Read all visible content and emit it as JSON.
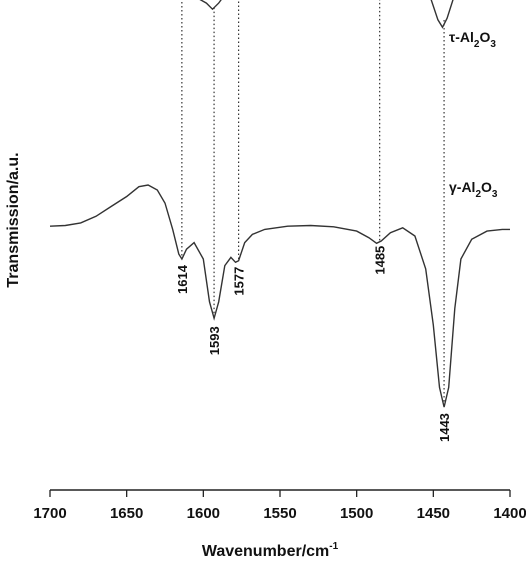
{
  "chart_data": {
    "type": "line",
    "xlabel_main": "Wavenumber/cm",
    "xlabel_sup": "-1",
    "ylabel": "Transmission/a.u.",
    "xlim": [
      1700,
      1400
    ],
    "x_ticks": [
      1700,
      1650,
      1600,
      1550,
      1500,
      1450,
      1400
    ],
    "y_ticks_shown": false,
    "series": [
      {
        "name_main": "τ-Al",
        "name_sub1": "2",
        "name_mid": "O",
        "name_sub2": "3",
        "color": "#333333",
        "points": [
          [
            1700,
            0.97
          ],
          [
            1690,
            0.975
          ],
          [
            1680,
            0.97
          ],
          [
            1670,
            0.985
          ],
          [
            1660,
            0.99
          ],
          [
            1650,
            0.992
          ],
          [
            1640,
            0.99
          ],
          [
            1635,
            0.995
          ],
          [
            1625,
            0.98
          ],
          [
            1618,
            0.96
          ],
          [
            1612,
            0.94
          ],
          [
            1605,
            0.9
          ],
          [
            1598,
            0.86
          ],
          [
            1594,
            0.82
          ],
          [
            1590,
            0.86
          ],
          [
            1585,
            0.93
          ],
          [
            1580,
            0.955
          ],
          [
            1577,
            0.95
          ],
          [
            1572,
            0.97
          ],
          [
            1565,
            0.98
          ],
          [
            1550,
            0.985
          ],
          [
            1530,
            0.985
          ],
          [
            1510,
            0.984
          ],
          [
            1495,
            0.98
          ],
          [
            1487,
            0.96
          ],
          [
            1483,
            0.975
          ],
          [
            1475,
            0.99
          ],
          [
            1468,
            0.985
          ],
          [
            1460,
            0.97
          ],
          [
            1452,
            0.9
          ],
          [
            1447,
            0.75
          ],
          [
            1444,
            0.7
          ],
          [
            1441,
            0.76
          ],
          [
            1436,
            0.92
          ],
          [
            1430,
            0.96
          ],
          [
            1420,
            0.97
          ],
          [
            1410,
            0.975
          ],
          [
            1400,
            0.975
          ]
        ]
      },
      {
        "name_main": "γ-Al",
        "name_sub1": "2",
        "name_mid": "O",
        "name_sub2": "3",
        "color": "#333333",
        "points": [
          [
            1700,
            0.65
          ],
          [
            1690,
            0.652
          ],
          [
            1680,
            0.66
          ],
          [
            1670,
            0.68
          ],
          [
            1660,
            0.71
          ],
          [
            1650,
            0.74
          ],
          [
            1642,
            0.77
          ],
          [
            1636,
            0.775
          ],
          [
            1630,
            0.76
          ],
          [
            1625,
            0.72
          ],
          [
            1620,
            0.64
          ],
          [
            1616,
            0.565
          ],
          [
            1614,
            0.55
          ],
          [
            1611,
            0.58
          ],
          [
            1606,
            0.6
          ],
          [
            1600,
            0.55
          ],
          [
            1596,
            0.42
          ],
          [
            1593,
            0.37
          ],
          [
            1590,
            0.42
          ],
          [
            1586,
            0.53
          ],
          [
            1582,
            0.555
          ],
          [
            1579,
            0.54
          ],
          [
            1577,
            0.545
          ],
          [
            1573,
            0.6
          ],
          [
            1568,
            0.625
          ],
          [
            1560,
            0.64
          ],
          [
            1545,
            0.65
          ],
          [
            1530,
            0.652
          ],
          [
            1515,
            0.648
          ],
          [
            1500,
            0.635
          ],
          [
            1492,
            0.615
          ],
          [
            1487,
            0.598
          ],
          [
            1484,
            0.605
          ],
          [
            1478,
            0.63
          ],
          [
            1470,
            0.645
          ],
          [
            1462,
            0.62
          ],
          [
            1455,
            0.52
          ],
          [
            1450,
            0.35
          ],
          [
            1446,
            0.16
          ],
          [
            1443,
            0.1
          ],
          [
            1440,
            0.16
          ],
          [
            1436,
            0.4
          ],
          [
            1432,
            0.55
          ],
          [
            1425,
            0.61
          ],
          [
            1415,
            0.635
          ],
          [
            1405,
            0.64
          ],
          [
            1400,
            0.64
          ]
        ]
      }
    ],
    "peak_labels": [
      "1614",
      "1593",
      "1577",
      "1485",
      "1443"
    ],
    "peak_positions": [
      1614,
      1593,
      1577,
      1485,
      1443
    ]
  }
}
